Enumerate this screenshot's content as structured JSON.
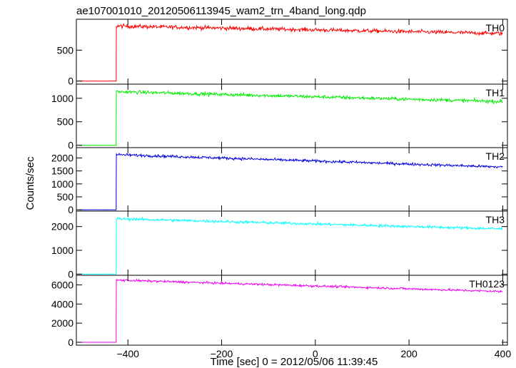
{
  "chart_data": {
    "type": "line",
    "title": "ae107001010_20120506113945_wam2_trn_4band_long.qdp",
    "xlabel": "Time [sec] 0 = 2012/05/06 11:39:45",
    "ylabel": "Counts/sec",
    "xlim": [
      -510,
      410
    ],
    "x_ticks": [
      -400,
      -200,
      0,
      200,
      400
    ],
    "x_tick_labels": [
      "−400",
      "−200",
      "0",
      "200",
      "400"
    ],
    "trigger_time": -425,
    "panels": [
      {
        "name": "TH0",
        "color": "#ff0000",
        "ylim": [
          -50,
          1000
        ],
        "y_ticks": [
          0,
          500
        ],
        "y_tick_labels": [
          "0",
          "500"
        ],
        "pre_level": 0,
        "post_start": 890,
        "post_end": 770,
        "noise": 30
      },
      {
        "name": "TH1",
        "color": "#00ee00",
        "ylim": [
          -50,
          1300
        ],
        "y_ticks": [
          0,
          500,
          1000
        ],
        "y_tick_labels": [
          "0",
          "500",
          "1000"
        ],
        "pre_level": 0,
        "post_start": 1140,
        "post_end": 930,
        "noise": 35
      },
      {
        "name": "TH2",
        "color": "#0000dd",
        "ylim": [
          -50,
          2400
        ],
        "y_ticks": [
          0,
          500,
          1000,
          1500,
          2000
        ],
        "y_tick_labels": [
          "0",
          "500",
          "1000",
          "1500",
          "2000"
        ],
        "pre_level": 0,
        "post_start": 2130,
        "post_end": 1650,
        "noise": 50
      },
      {
        "name": "TH3",
        "color": "#00ffff",
        "ylim": [
          -50,
          2650
        ],
        "y_ticks": [
          0,
          1000,
          2000
        ],
        "y_tick_labels": [
          "0",
          "1000",
          "2000"
        ],
        "pre_level": 0,
        "post_start": 2330,
        "post_end": 1900,
        "noise": 55
      },
      {
        "name": "TH0123",
        "color": "#ee00ee",
        "ylim": [
          -300,
          7000
        ],
        "y_ticks": [
          0,
          2000,
          4000,
          6000
        ],
        "y_tick_labels": [
          "0",
          "2000",
          "4000",
          "6000"
        ],
        "pre_level": 0,
        "post_start": 6500,
        "post_end": 5300,
        "noise": 110
      }
    ]
  }
}
